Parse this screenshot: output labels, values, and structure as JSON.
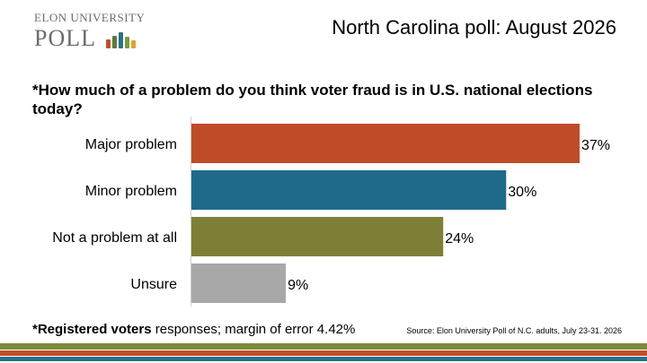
{
  "logo": {
    "top_text": "ELON UNIVERSITY",
    "main_text": "POLL",
    "bar_colors": [
      "#c0502a",
      "#5b7a3a",
      "#2b6f8c",
      "#7a9a3a",
      "#e0a030"
    ]
  },
  "header": {
    "title": "North Carolina poll: August 2026"
  },
  "question": "*How much of a problem do you think voter fraud is in U.S. national elections today?",
  "chart_data": {
    "type": "bar",
    "orientation": "horizontal",
    "categories": [
      "Major problem",
      "Minor problem",
      "Not a problem at all",
      "Unsure"
    ],
    "values": [
      37,
      30,
      24,
      9
    ],
    "value_labels": [
      "37%",
      "30%",
      "24%",
      "9%"
    ],
    "colors": [
      "#bf4b28",
      "#1f6a8a",
      "#7c7f35",
      "#a8a8a8"
    ],
    "xlim": [
      0,
      37
    ],
    "grid": false,
    "legend": "none"
  },
  "footnote": {
    "bold": "*Registered voters",
    "rest": " responses; margin of error 4.42%"
  },
  "source": "Source: Elon University Poll of N.C. adults, July 23-31. 2026",
  "stripes": [
    "#7d8a3a",
    "#c0502a",
    "#2b6f8c",
    "#ffffff"
  ]
}
